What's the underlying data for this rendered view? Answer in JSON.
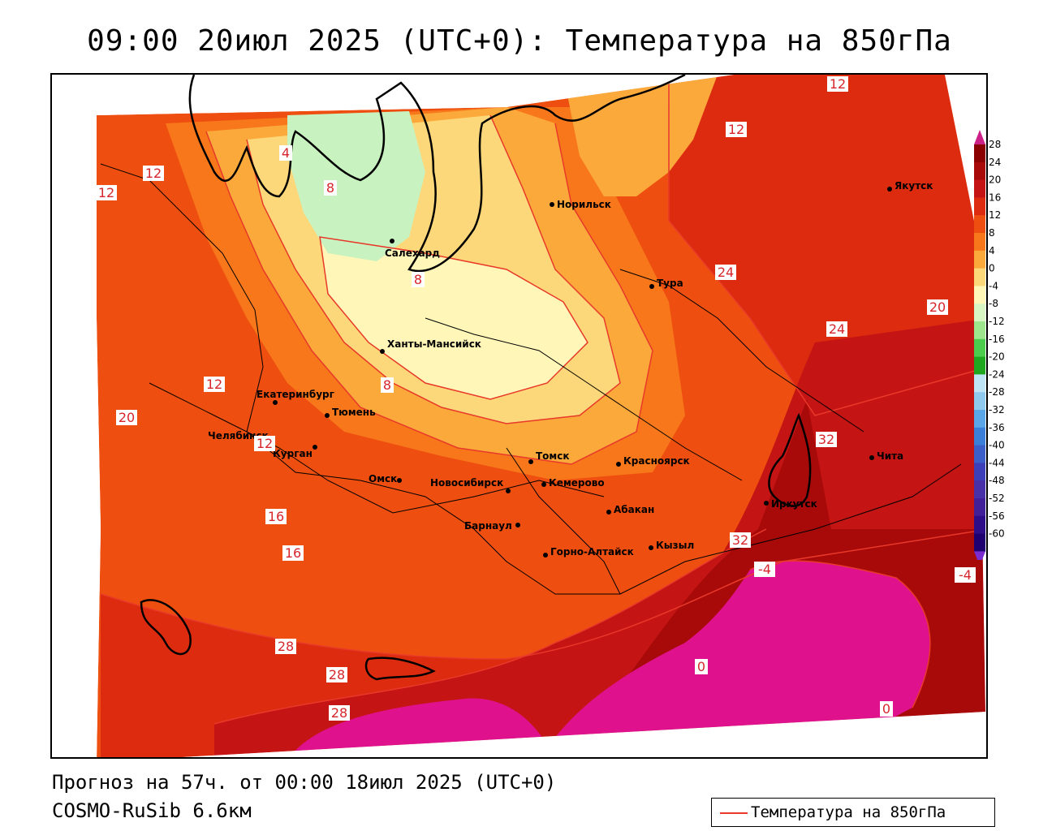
{
  "header": {
    "title": "09:00 20июл 2025 (UTC+0): Температура на 850гПа"
  },
  "footer": {
    "forecast": "Прогноз на 57ч. от 00:00 18июл 2025 (UTC+0)",
    "model": "COSMO-RuSib 6.6км"
  },
  "legend": {
    "label": "Температура на 850гПа",
    "line_color": "#e8392a"
  },
  "colorbar": {
    "ticks": [
      "28",
      "24",
      "20",
      "16",
      "12",
      "8",
      "4",
      "0",
      "-4",
      "-8",
      "-12",
      "-16",
      "-20",
      "-24",
      "-28",
      "-32",
      "-36",
      "-40",
      "-44",
      "-48",
      "-52",
      "-56",
      "-60"
    ],
    "colors": [
      "#8b0000",
      "#a80a0a",
      "#c41414",
      "#dd2b10",
      "#ee4f10",
      "#f7771a",
      "#fba93b",
      "#fdd87a",
      "#fff6b8",
      "#d8f5c4",
      "#9ee68e",
      "#4ccc4c",
      "#1fa81f",
      "#bfe4f5",
      "#8fc9ee",
      "#5aa6e6",
      "#3b7fd8",
      "#3c5ec8",
      "#3d3fb8",
      "#4830a8",
      "#401f98",
      "#2d0e88",
      "#1f0070"
    ],
    "top_color": "#cc2288",
    "bottom_color": "#7b2ccf"
  },
  "map": {
    "cities": [
      {
        "name": "Норильск"
      },
      {
        "name": "Якутск"
      },
      {
        "name": "Салехард"
      },
      {
        "name": "Тура"
      },
      {
        "name": "Ханты-Мансийск"
      },
      {
        "name": "Екатеринбург"
      },
      {
        "name": "Тюмень"
      },
      {
        "name": "Челябинск"
      },
      {
        "name": "Курган"
      },
      {
        "name": "Омск"
      },
      {
        "name": "Новосибирск"
      },
      {
        "name": "Томск"
      },
      {
        "name": "Кемерово"
      },
      {
        "name": "Красноярск"
      },
      {
        "name": "Барнаул"
      },
      {
        "name": "Абакан"
      },
      {
        "name": "Иркутск"
      },
      {
        "name": "Чита"
      },
      {
        "name": "Горно-Алтайск"
      },
      {
        "name": "Кызыл"
      }
    ],
    "contour_labels": [
      "12",
      "12",
      "12",
      "12",
      "12",
      "12",
      "16",
      "16",
      "20",
      "20",
      "24",
      "24",
      "28",
      "28",
      "28",
      "32",
      "32",
      "-4",
      "-4",
      "0",
      "0",
      "4",
      "8",
      "8",
      "8"
    ]
  }
}
